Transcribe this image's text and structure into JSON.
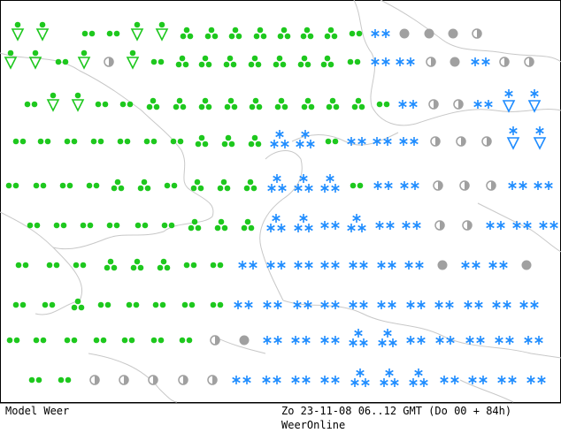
{
  "footer": {
    "left": "Model Weer",
    "right": "Zo 23-11-08 06..12 GMT (Do 00 + 84h)",
    "brand": "WeerOnline"
  }
}
